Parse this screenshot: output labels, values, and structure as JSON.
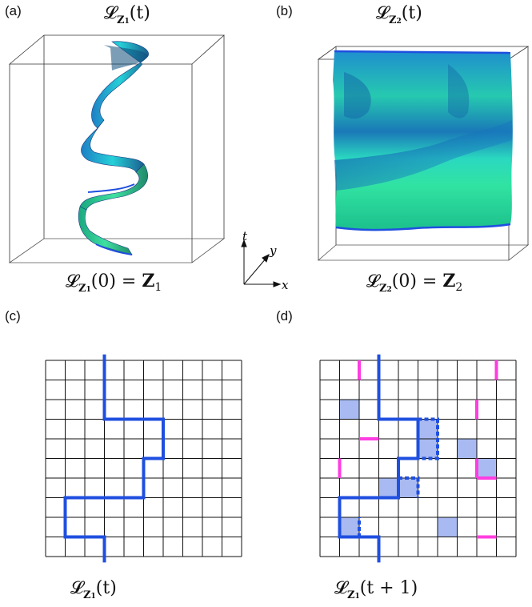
{
  "panels": {
    "a": {
      "letter": "(a)",
      "top_formula": {
        "script": "𝓛",
        "sub": "Z",
        "subsub": "1",
        "arg": "(t)"
      },
      "bottom_formula": {
        "script": "𝓛",
        "sub": "Z",
        "subsub": "1",
        "arg": "(0) = ",
        "rhs": "Z",
        "rhs_sub": "1"
      }
    },
    "b": {
      "letter": "(b)",
      "top_formula": {
        "script": "𝓛",
        "sub": "Z",
        "subsub": "2",
        "arg": "(t)"
      },
      "bottom_formula": {
        "script": "𝓛",
        "sub": "Z",
        "subsub": "2",
        "arg": "(0) = ",
        "rhs": "Z",
        "rhs_sub": "2"
      }
    },
    "c": {
      "letter": "(c)",
      "caption": {
        "script": "𝓛",
        "sub": "Z",
        "subsub": "1",
        "arg": "(t)"
      }
    },
    "d": {
      "letter": "(d)",
      "caption": {
        "script": "𝓛",
        "sub": "Z",
        "subsub": "1",
        "arg": "(t + 1)"
      }
    }
  },
  "axes_glyph": {
    "t": "t",
    "y": "y",
    "x": "x"
  },
  "colors": {
    "path": "#1f4fe0",
    "highlight_pink": "#ff3de0",
    "cell_fill": "#9fb3ef",
    "surface_teal": "#22c9a6",
    "surface_blue": "#1a8fd0"
  }
}
